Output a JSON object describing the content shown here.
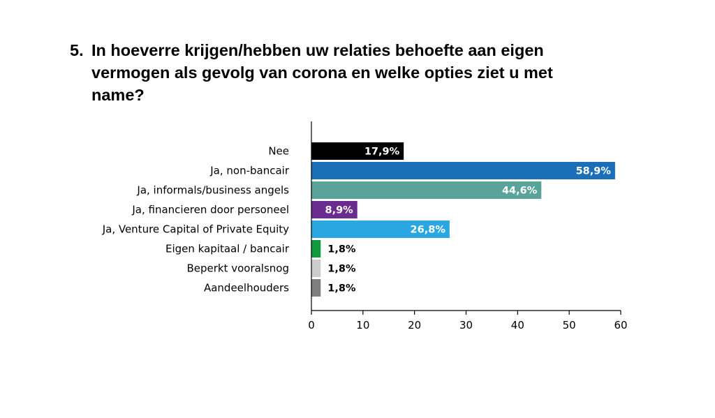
{
  "title": {
    "number": "5.",
    "text": "In hoeverre krijgen/hebben uw relaties behoefte aan eigen vermogen als gevolg van corona en welke opties ziet u met name?"
  },
  "chart_data": {
    "type": "bar",
    "orientation": "horizontal",
    "categories": [
      "Nee",
      "Ja, non-bancair",
      "Ja, informals/business angels",
      "Ja, financieren door personeel",
      "Ja, Venture Capital of Private Equity",
      "Eigen kapitaal / bancair",
      "Beperkt vooralsnog",
      "Aandeelhouders"
    ],
    "values": [
      17.9,
      58.9,
      44.6,
      8.9,
      26.8,
      1.8,
      1.8,
      1.8
    ],
    "value_labels": [
      "17,9%",
      "58,9%",
      "44,6%",
      "8,9%",
      "26,8%",
      "1,8%",
      "1,8%",
      "1,8%"
    ],
    "colors": [
      "#000000",
      "#1a6fb8",
      "#5aa39b",
      "#6a2d8f",
      "#2aa7e0",
      "#129a3f",
      "#cccccc",
      "#7f7f7f"
    ],
    "label_colors": [
      "#ffffff",
      "#ffffff",
      "#ffffff",
      "#ffffff",
      "#ffffff",
      "#000000",
      "#000000",
      "#000000"
    ],
    "label_inside": [
      true,
      true,
      true,
      true,
      true,
      false,
      false,
      false
    ],
    "xlim": [
      0,
      60
    ],
    "xticks": [
      0,
      10,
      20,
      30,
      40,
      50,
      60
    ],
    "xlabel": "",
    "ylabel": "",
    "grid": false
  }
}
